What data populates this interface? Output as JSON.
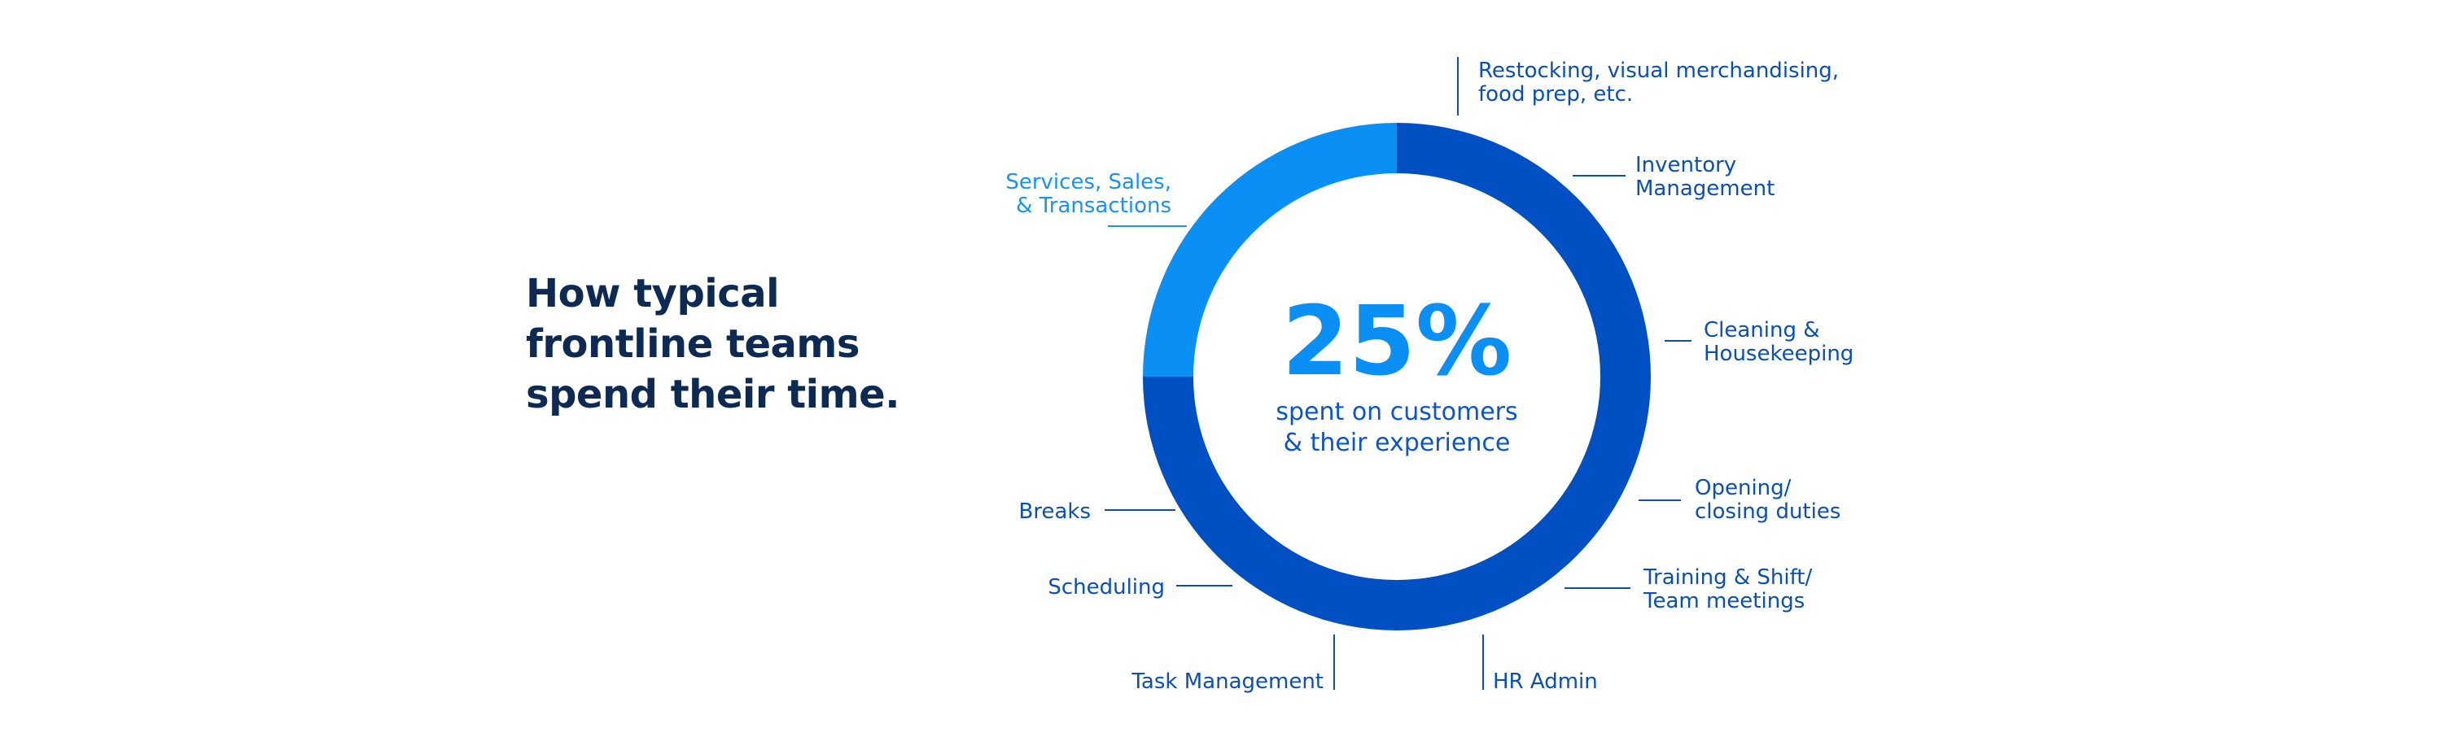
{
  "headline": {
    "lines": [
      "How typical",
      "frontline teams",
      "spend their time."
    ]
  },
  "center": {
    "value": "25%",
    "sub_lines": [
      "spent on customers",
      "& their experience"
    ]
  },
  "colors": {
    "highlight": "#0a8ff5",
    "main": "#0050c3",
    "label": "#0a4fb8",
    "headline": "#0d2a52"
  },
  "chart_data": {
    "type": "pie",
    "style": "donut",
    "slices": [
      {
        "label": "Services, Sales, & Transactions",
        "value": 25,
        "color": "#0a8ff5"
      },
      {
        "label": "",
        "value": 75,
        "color": "#0050c3"
      }
    ],
    "annotations": [
      {
        "lines": [
          "Restocking, visual merchandising,",
          "food prep, etc."
        ]
      },
      {
        "lines": [
          "Inventory",
          "Management"
        ]
      },
      {
        "lines": [
          "Cleaning &",
          "Housekeeping"
        ]
      },
      {
        "lines": [
          "Opening/",
          "closing duties"
        ]
      },
      {
        "lines": [
          "Training & Shift/",
          "Team meetings"
        ]
      },
      {
        "lines": [
          "HR Admin"
        ]
      },
      {
        "lines": [
          "Task Management"
        ]
      },
      {
        "lines": [
          "Scheduling"
        ]
      },
      {
        "lines": [
          "Breaks"
        ]
      },
      {
        "lines": [
          "Services, Sales,",
          "& Transactions"
        ]
      }
    ]
  }
}
